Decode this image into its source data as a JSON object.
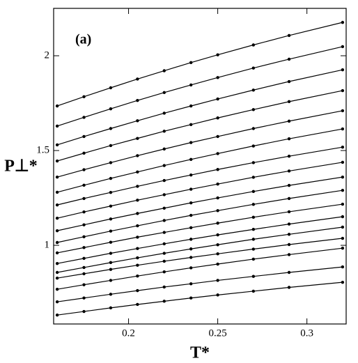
{
  "chart_data": {
    "type": "line",
    "annotation": "(a)",
    "x_label": "T*",
    "y_label": "P⊥*",
    "x": [
      0.16,
      0.175,
      0.19,
      0.205,
      0.22,
      0.235,
      0.25,
      0.27,
      0.29,
      0.32
    ],
    "series": [
      {
        "color": "#000000",
        "values": [
          1.735,
          1.784,
          1.831,
          1.877,
          1.921,
          1.964,
          2.005,
          2.057,
          2.107,
          2.176
        ]
      },
      {
        "color": "#000000",
        "values": [
          1.629,
          1.675,
          1.72,
          1.764,
          1.806,
          1.846,
          1.885,
          1.935,
          1.982,
          2.048
        ]
      },
      {
        "color": "#000000",
        "values": [
          1.53,
          1.574,
          1.616,
          1.657,
          1.697,
          1.735,
          1.772,
          1.819,
          1.864,
          1.926
        ]
      },
      {
        "color": "#000000",
        "values": [
          1.445,
          1.486,
          1.526,
          1.564,
          1.602,
          1.637,
          1.672,
          1.716,
          1.758,
          1.816
        ]
      },
      {
        "color": "#000000",
        "values": [
          1.36,
          1.399,
          1.436,
          1.473,
          1.508,
          1.542,
          1.574,
          1.616,
          1.655,
          1.71
        ]
      },
      {
        "color": "#000000",
        "values": [
          1.28,
          1.317,
          1.353,
          1.387,
          1.421,
          1.453,
          1.484,
          1.524,
          1.562,
          1.614
        ]
      },
      {
        "color": "#000000",
        "values": [
          1.213,
          1.247,
          1.279,
          1.311,
          1.342,
          1.371,
          1.4,
          1.436,
          1.47,
          1.518
        ]
      },
      {
        "color": "#000000",
        "values": [
          1.143,
          1.176,
          1.207,
          1.238,
          1.267,
          1.296,
          1.323,
          1.359,
          1.392,
          1.438
        ]
      },
      {
        "color": "#000000",
        "values": [
          1.077,
          1.108,
          1.139,
          1.168,
          1.196,
          1.224,
          1.25,
          1.284,
          1.316,
          1.36
        ]
      },
      {
        "color": "#000000",
        "values": [
          1.015,
          1.045,
          1.075,
          1.103,
          1.131,
          1.158,
          1.183,
          1.216,
          1.247,
          1.29
        ]
      },
      {
        "color": "#000000",
        "values": [
          0.96,
          0.988,
          1.016,
          1.043,
          1.068,
          1.093,
          1.117,
          1.148,
          1.177,
          1.217
        ]
      },
      {
        "color": "#000000",
        "values": [
          0.904,
          0.931,
          0.958,
          0.983,
          1.008,
          1.032,
          1.055,
          1.084,
          1.112,
          1.151
        ]
      },
      {
        "color": "#000000",
        "values": [
          0.857,
          0.883,
          0.909,
          0.934,
          0.958,
          0.981,
          1.003,
          1.032,
          1.058,
          1.096
        ]
      },
      {
        "color": "#000000",
        "values": [
          0.827,
          0.85,
          0.873,
          0.895,
          0.916,
          0.936,
          0.955,
          0.98,
          1.004,
          1.037
        ]
      },
      {
        "color": "#000000",
        "values": [
          0.768,
          0.792,
          0.815,
          0.838,
          0.86,
          0.881,
          0.901,
          0.927,
          0.951,
          0.985
        ]
      },
      {
        "color": "#000000",
        "values": [
          0.702,
          0.722,
          0.742,
          0.761,
          0.78,
          0.797,
          0.815,
          0.836,
          0.857,
          0.886
        ]
      },
      {
        "color": "#000000",
        "values": [
          0.632,
          0.651,
          0.67,
          0.688,
          0.705,
          0.722,
          0.738,
          0.758,
          0.778,
          0.805
        ]
      }
    ],
    "xlim": [
      0.158,
      0.322
    ],
    "ylim": [
      0.585,
      2.25
    ],
    "xticks": [
      0.2,
      0.25,
      0.3
    ],
    "yticks": [
      1,
      1.5,
      2
    ],
    "grid": false
  }
}
